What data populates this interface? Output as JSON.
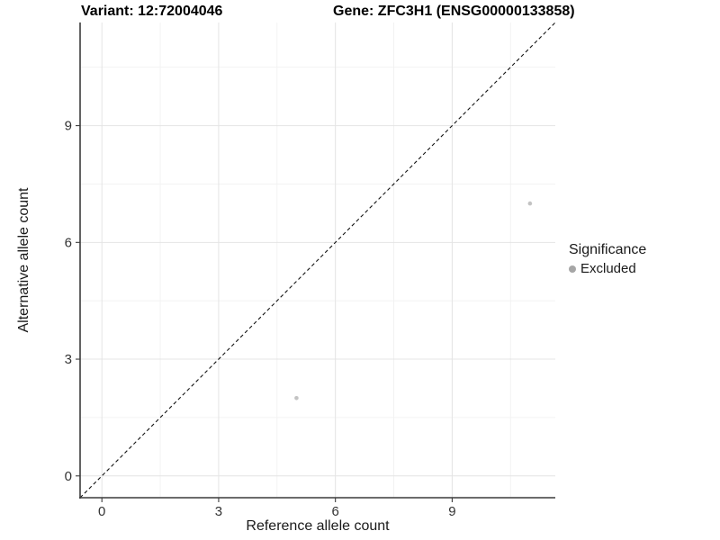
{
  "chart_data": {
    "type": "scatter",
    "title_left": "Variant: 12:72004046",
    "title_right": "Gene: ZFC3H1 (ENSG00000133858)",
    "xlabel": "Reference allele count",
    "ylabel": "Alternative allele count",
    "xlim": [
      -0.56,
      11.65
    ],
    "ylim": [
      -0.56,
      11.65
    ],
    "x_ticks": [
      0,
      3,
      6,
      9
    ],
    "y_ticks": [
      0,
      3,
      6,
      9
    ],
    "x_minor_ticks": [
      1.5,
      4.5,
      7.5,
      10.5
    ],
    "y_minor_ticks": [
      1.5,
      4.5,
      7.5,
      10.5
    ],
    "grid": "major+minor",
    "grid_major_color": "#e4e4e4",
    "grid_minor_color": "#f1f1f1",
    "axis_color": "#3c3c3c",
    "tick_label_color": "#333333",
    "identity_line": {
      "type": "y=x",
      "style": "dashed",
      "color": "#121212"
    },
    "point_color": "#c3c3c3",
    "points": [
      {
        "x": 5,
        "y": 2,
        "significance": "Excluded"
      },
      {
        "x": 11,
        "y": 7,
        "significance": "Excluded"
      }
    ],
    "legend": {
      "title": "Significance",
      "position": "right",
      "items": [
        {
          "label": "Excluded",
          "color": "#a6a6a6",
          "marker": "circle"
        }
      ]
    }
  }
}
